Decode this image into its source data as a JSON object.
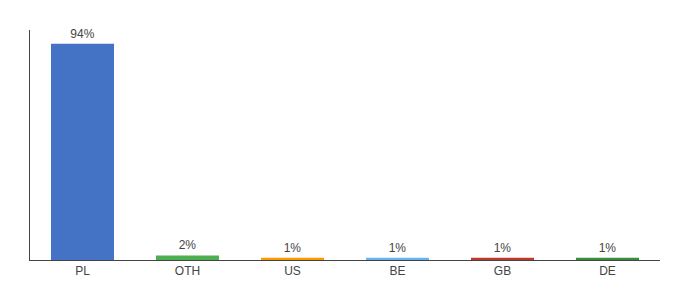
{
  "chart_data": {
    "type": "bar",
    "categories": [
      "PL",
      "OTH",
      "US",
      "BE",
      "GB",
      "DE"
    ],
    "values": [
      94,
      2,
      1,
      1,
      1,
      1
    ],
    "value_labels": [
      "94%",
      "2%",
      "1%",
      "1%",
      "1%",
      "1%"
    ],
    "colors": [
      "#4472c4",
      "#4caf50",
      "#ff9800",
      "#64b5f6",
      "#c0392b",
      "#388e3c"
    ],
    "ylim": [
      0,
      100
    ],
    "grid": false,
    "data_labels": true,
    "tick_labels": "x"
  }
}
